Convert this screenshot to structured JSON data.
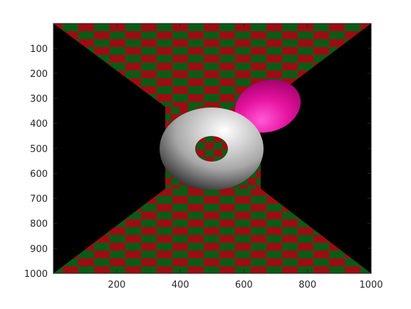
{
  "chart_data": {
    "type": "image",
    "title": "",
    "xlabel": "",
    "ylabel": "",
    "xlim": [
      1,
      1000
    ],
    "ylim": [
      1,
      1000
    ],
    "y_reversed": true,
    "grid": false,
    "x_ticks": [
      200,
      400,
      600,
      800,
      1000
    ],
    "x_tick_labels": [
      "200",
      "400",
      "600",
      "800",
      "1000"
    ],
    "y_ticks": [
      100,
      200,
      300,
      400,
      500,
      600,
      700,
      800,
      900,
      1000
    ],
    "y_tick_labels": [
      "100",
      "200",
      "300",
      "400",
      "500",
      "600",
      "700",
      "800",
      "900",
      "1000"
    ],
    "scene": {
      "checker_colors": [
        "#9b0d12",
        "#0b5a15"
      ],
      "background_color": "#000000",
      "torus_colors": [
        "#ffffff",
        "#a8a8a8",
        "#101010"
      ],
      "ellipsoid_colors": [
        "#ff59d6",
        "#e6139f",
        "#9e0069"
      ]
    }
  }
}
